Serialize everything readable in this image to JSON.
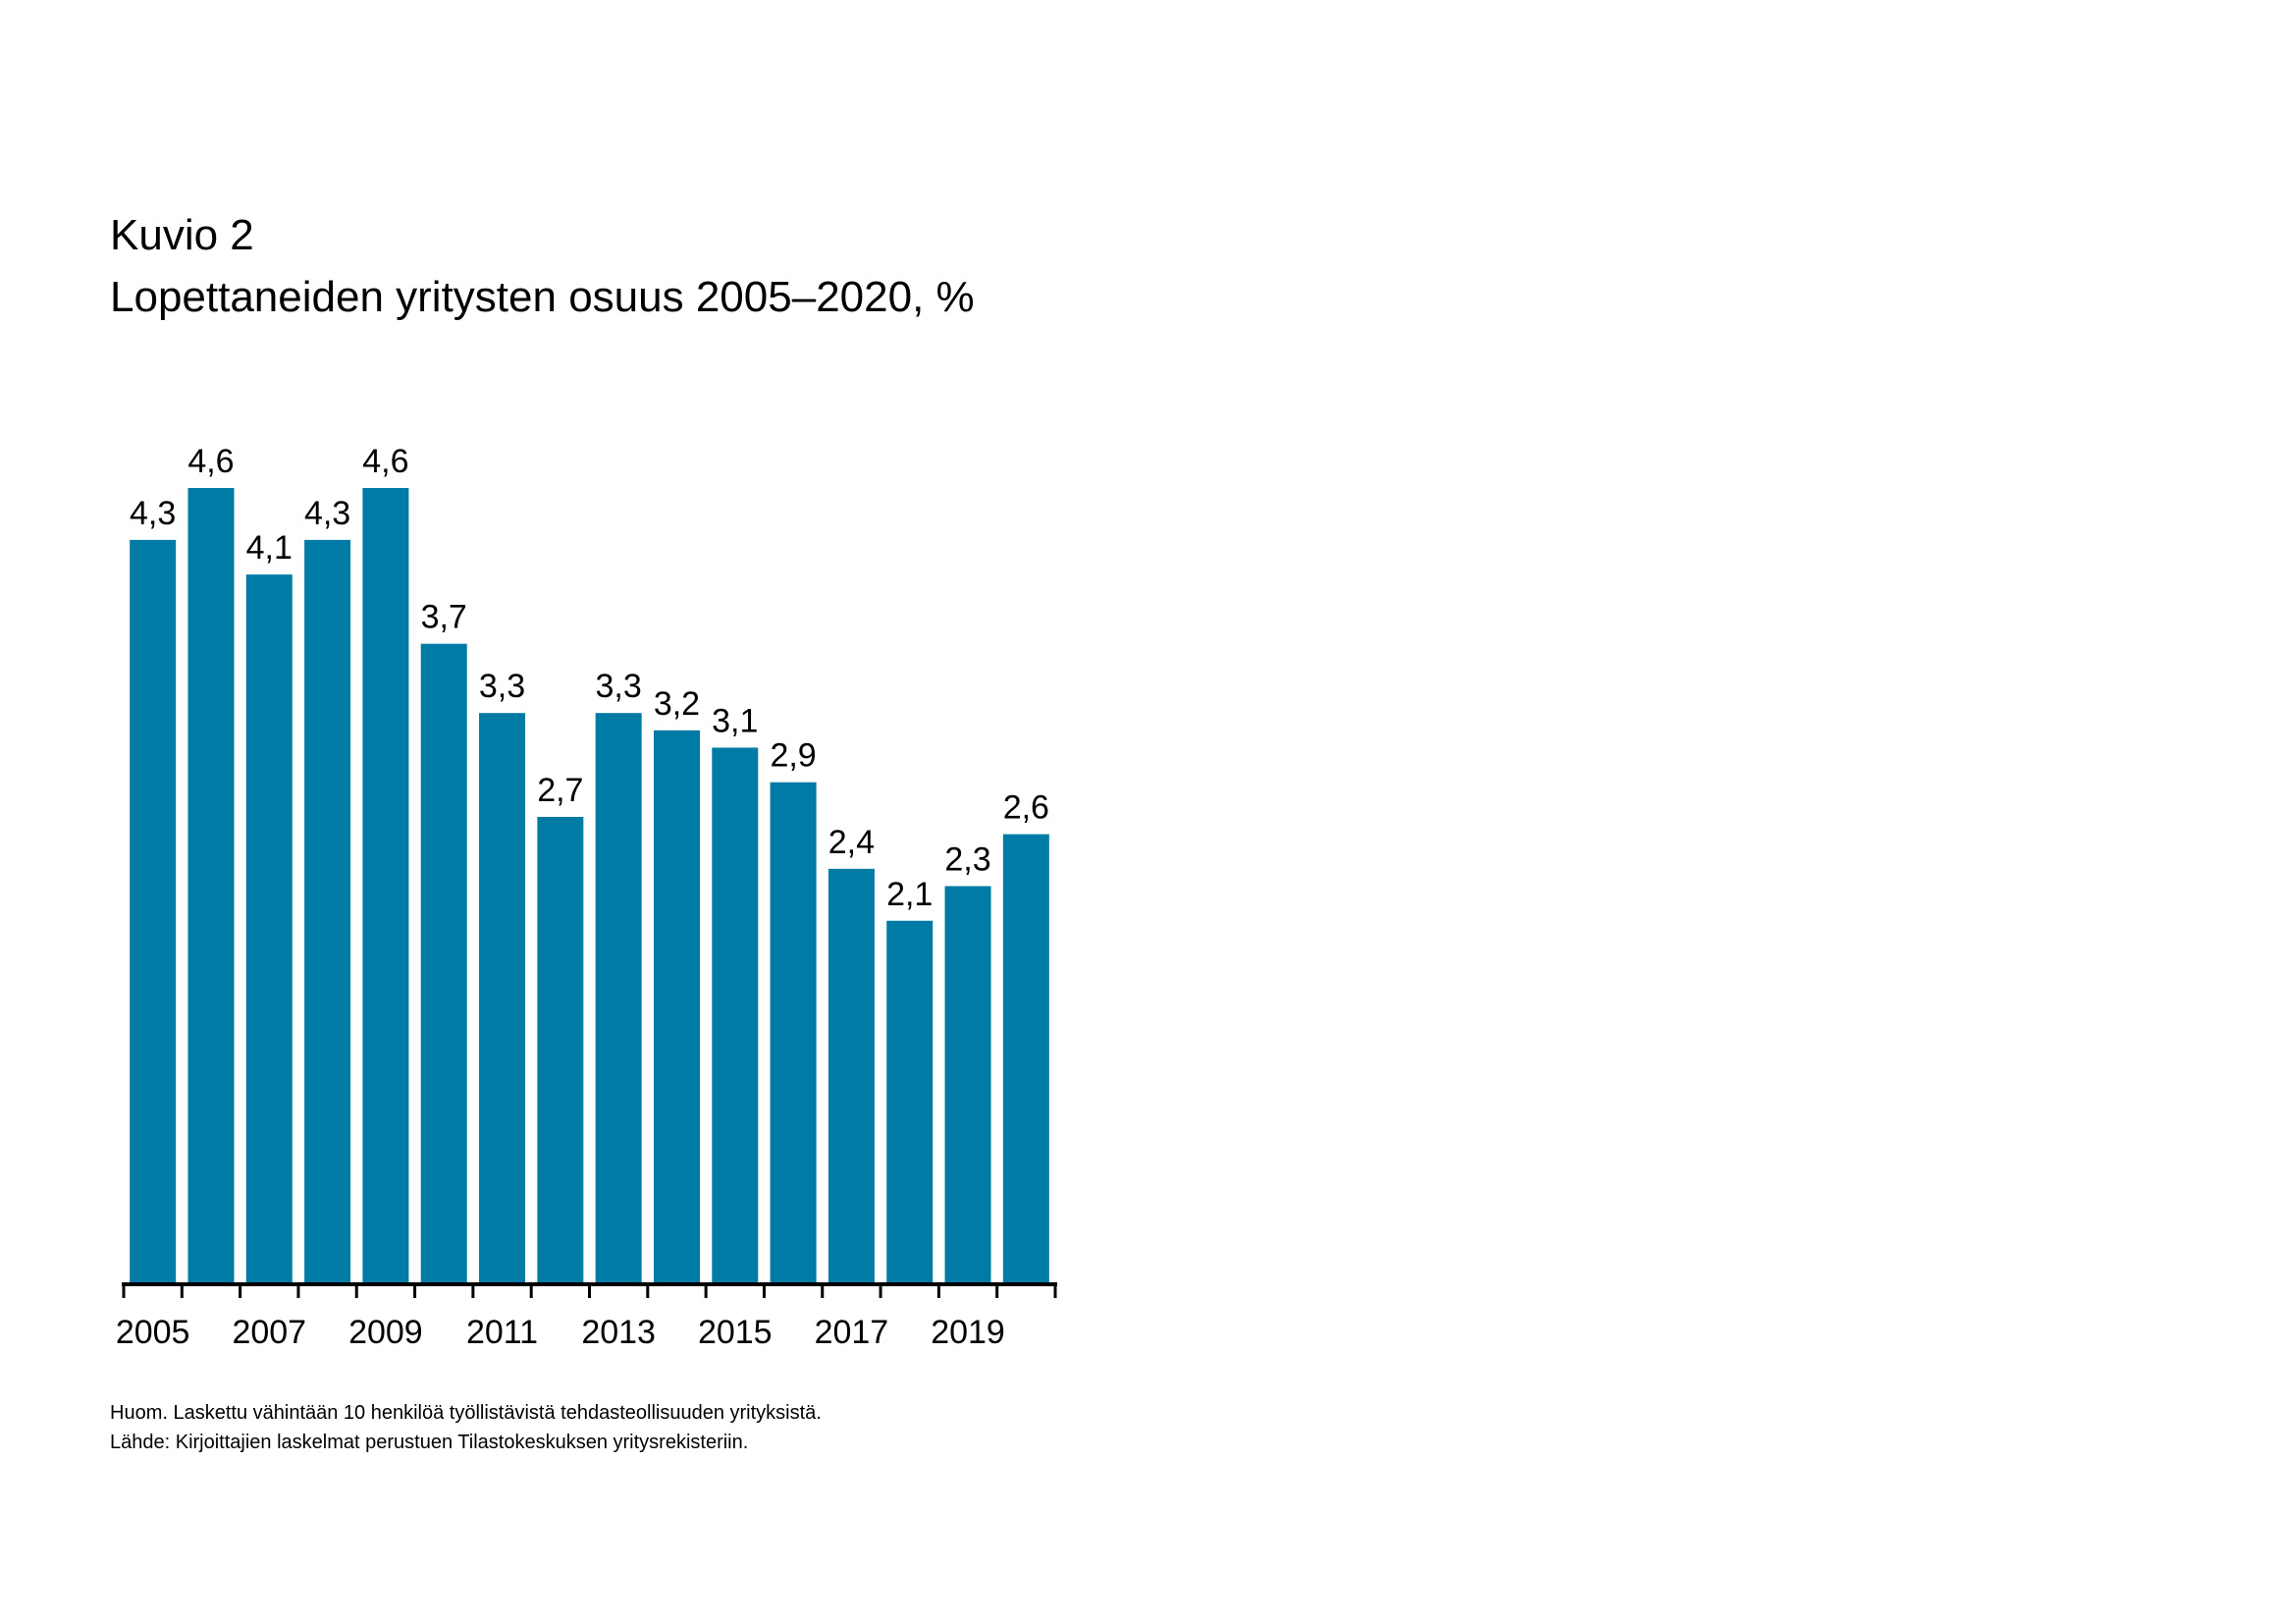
{
  "title": "Kuvio 2",
  "subtitle": "Lopettaneiden yritysten osuus 2005–2020, %",
  "notes": [
    "Huom. Laskettu vähintään 10 henkilöä työllistävistä tehdasteollisuuden yrityksistä.",
    "Lähde: Kirjoittajien laskelmat perustuen Tilastokeskuksen yritysrekisteriin."
  ],
  "chart_data": {
    "type": "bar",
    "title": "Lopettaneiden yritysten osuus 2005–2020, %",
    "xlabel": "",
    "ylabel": "",
    "categories": [
      "2005",
      "2006",
      "2007",
      "2008",
      "2009",
      "2010",
      "2011",
      "2012",
      "2013",
      "2014",
      "2015",
      "2016",
      "2017",
      "2018",
      "2019",
      "2020"
    ],
    "tick_labels": [
      "2005",
      "2007",
      "2009",
      "2011",
      "2013",
      "2015",
      "2017",
      "2019"
    ],
    "values": [
      4.3,
      4.6,
      4.1,
      4.3,
      4.6,
      3.7,
      3.3,
      2.7,
      3.3,
      3.2,
      3.1,
      2.9,
      2.4,
      2.1,
      2.3,
      2.6
    ],
    "data_labels": [
      "4,3",
      "4,6",
      "4,1",
      "4,3",
      "4,6",
      "3,7",
      "3,3",
      "2,7",
      "3,3",
      "3,2",
      "3,1",
      "2,9",
      "2,4",
      "2,1",
      "2,3",
      "2,6"
    ],
    "ylim": [
      0,
      4.6
    ],
    "grid": false,
    "bar_color": "#007BA5"
  }
}
